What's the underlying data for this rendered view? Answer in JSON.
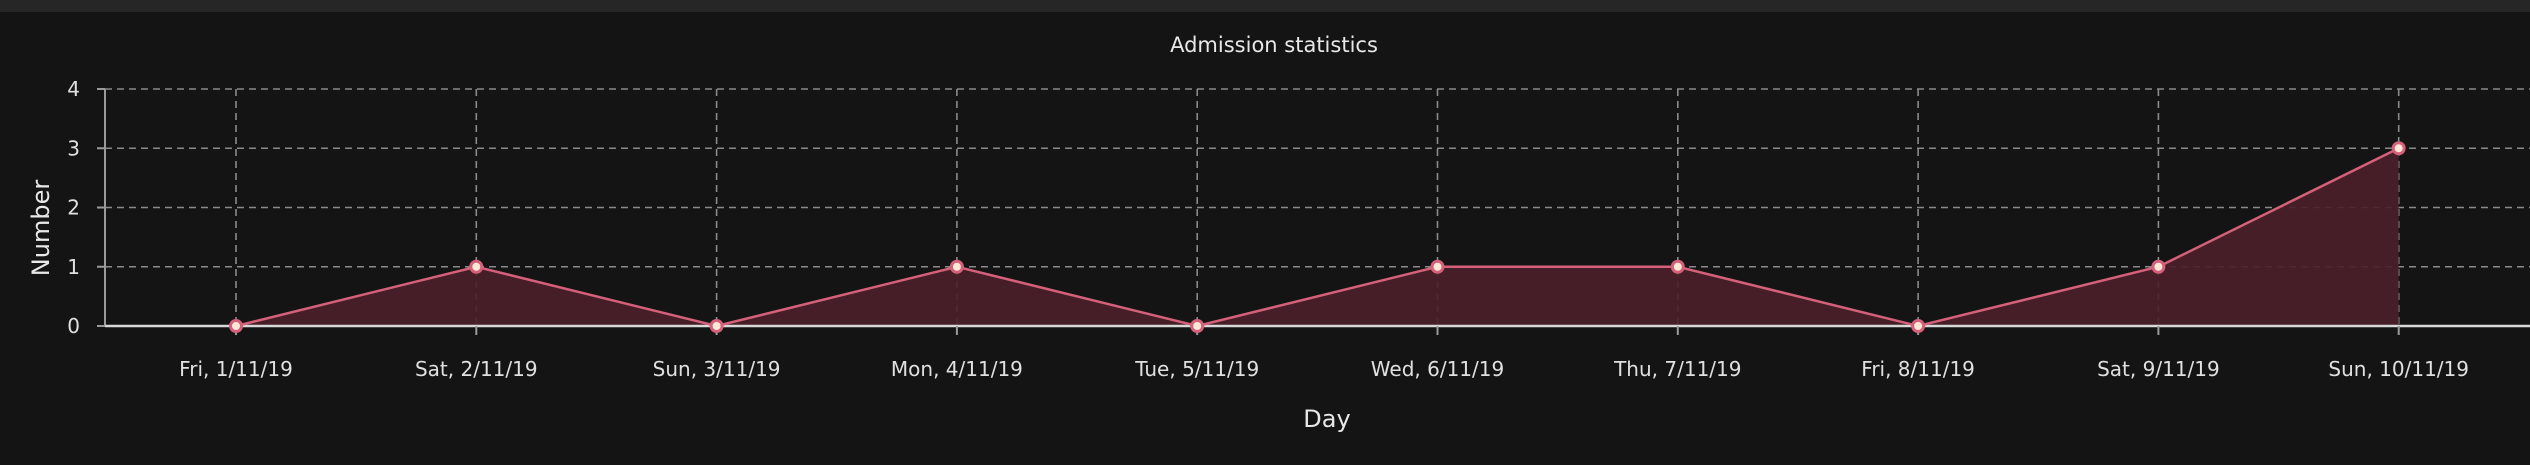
{
  "chart_data": {
    "type": "area",
    "title": "Admission statistics",
    "xlabel": "Day",
    "ylabel": "Number",
    "categories": [
      "Fri, 1/11/19",
      "Sat, 2/11/19",
      "Sun, 3/11/19",
      "Mon, 4/11/19",
      "Tue, 5/11/19",
      "Wed, 6/11/19",
      "Thu, 7/11/19",
      "Fri, 8/11/19",
      "Sat, 9/11/19",
      "Sun, 10/11/19"
    ],
    "values": [
      0,
      1,
      0,
      1,
      0,
      1,
      1,
      0,
      1,
      3
    ],
    "ylim": [
      0,
      4
    ],
    "yticks": [
      0,
      1,
      2,
      3,
      4
    ],
    "grid": true,
    "colors": {
      "background": "#141414",
      "line": "#d4607a",
      "fill": "#4a2029",
      "point": "#ffe9d6"
    }
  }
}
